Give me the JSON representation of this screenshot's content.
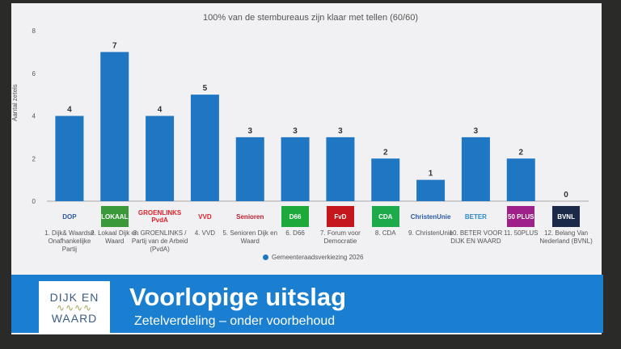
{
  "chart_data": {
    "type": "bar",
    "title": "100% van de stembureaus zijn klaar met tellen (60/60)",
    "ylabel": "Aantal zetels",
    "xlabel": "",
    "ylim": [
      0,
      8
    ],
    "yticks": [
      "0",
      "2",
      "4",
      "6",
      "8"
    ],
    "grid": false,
    "legend_placement": "bottom",
    "bar_color": "#1f77c4",
    "categories": [
      "1. Dijk& Waardse Onafhankelijke Partij",
      "2. Lokaal Dijk en Waard",
      "3. GROENLINKS / Partij van de Arbeid (PvdA)",
      "4. VVD",
      "5. Senioren Dijk en Waard",
      "6. D66",
      "7. Forum voor Democratie",
      "8. CDA",
      "9. ChristenUnie",
      "10. BETER VOOR DIJK EN WAARD",
      "11. 50PLUS",
      "12. Belang Van Nederland (BVNL)"
    ],
    "series": [
      {
        "name": "Gemeenteraadsverkiezing 2026",
        "values": [
          4,
          7,
          4,
          5,
          3,
          3,
          3,
          2,
          1,
          3,
          2,
          0
        ]
      }
    ],
    "party_logos": [
      {
        "text": "DOP",
        "color": "#2a5aa8",
        "bg": "transparent"
      },
      {
        "text": "LOKAAL",
        "color": "#ffffff",
        "bg": "#3a9a3a"
      },
      {
        "text": "GROENLINKS PvdA",
        "color": "#e0202a",
        "bg": "transparent"
      },
      {
        "text": "VVD",
        "color": "#e0202a",
        "bg": "transparent"
      },
      {
        "text": "Senioren",
        "color": "#c02030",
        "bg": "transparent"
      },
      {
        "text": "D66",
        "color": "#ffffff",
        "bg": "#1daa3a"
      },
      {
        "text": "FvD",
        "color": "#ffffff",
        "bg": "#c4161c"
      },
      {
        "text": "CDA",
        "color": "#ffffff",
        "bg": "#1daa4a"
      },
      {
        "text": "ChristenUnie",
        "color": "#2a5aa8",
        "bg": "transparent"
      },
      {
        "text": "BETER",
        "color": "#2a8ac8",
        "bg": "transparent"
      },
      {
        "text": "50 PLUS",
        "color": "#ffffff",
        "bg": "#a0208a"
      },
      {
        "text": "BVNL",
        "color": "#ffffff",
        "bg": "#1c2a4a"
      }
    ]
  },
  "banner": {
    "logo_line1": "DIJK EN",
    "logo_line2": "WAARD",
    "title": "Voorlopige uitslag",
    "subtitle": "Zetelverdeling – onder voorbehoud"
  }
}
